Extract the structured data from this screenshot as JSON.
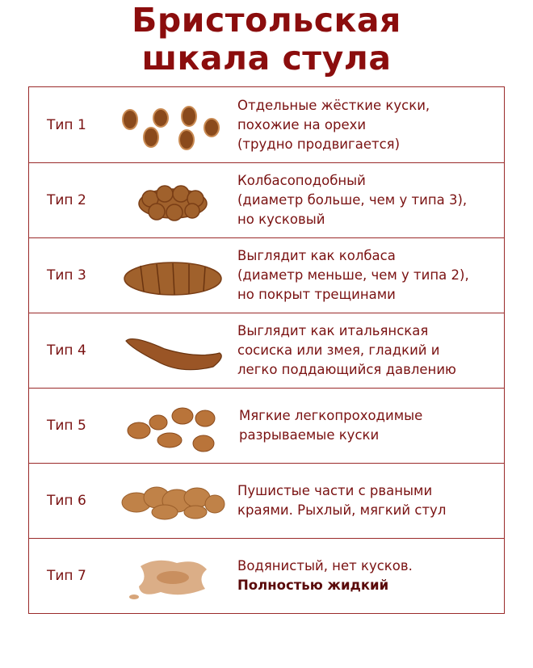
{
  "title": [
    "Бристольская",
    "шкала стула"
  ],
  "rows": [
    {
      "label": "Тип 1",
      "lines": [
        "Отдельные жёсткие куски,",
        "похожие на орехи",
        "(трудно продвигается)"
      ]
    },
    {
      "label": "Тип 2",
      "lines": [
        "Колбасоподобный",
        "(диаметр больше, чем у типа 3),",
        "но кусковый"
      ]
    },
    {
      "label": "Тип 3",
      "lines": [
        "Выглядит как колбаса",
        "(диаметр меньше, чем у типа 2),",
        "но покрыт трещинами"
      ]
    },
    {
      "label": "Тип 4",
      "lines": [
        "Выглядит как итальянская",
        "сосиска или змея, гладкий и",
        "легко поддающийся давлению"
      ]
    },
    {
      "label": "Тип 5",
      "lines": [
        "Мягкие легкопроходимые",
        "разрываемые куски"
      ]
    },
    {
      "label": "Тип 6",
      "lines": [
        "Пушистые части с рваными",
        "краями. Рыхлый, мягкий стул"
      ]
    },
    {
      "label": "Тип 7",
      "lines": [
        "Водянистый, нет кусков."
      ],
      "bold_line": "Полностью жидкий"
    }
  ],
  "colors": {
    "title": "#8b0d0d",
    "text": "#7a1212",
    "border": "#9a2a2a",
    "stool_dark": "#8a4a1c",
    "stool_light": "#c98a52"
  }
}
